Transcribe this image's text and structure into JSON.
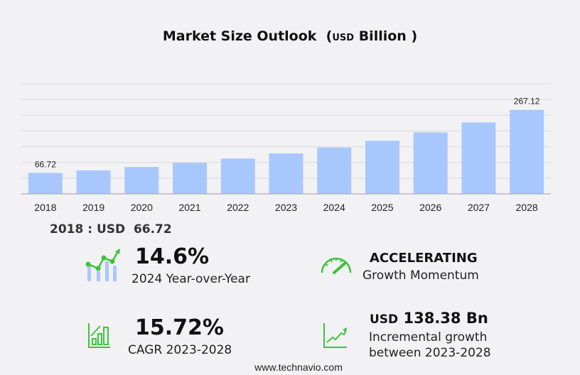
{
  "chart_data": {
    "type": "bar",
    "title": "Market Size Outlook",
    "unit_prefix": "USD",
    "unit": "Billion",
    "categories": [
      "2018",
      "2019",
      "2020",
      "2021",
      "2022",
      "2023",
      "2024",
      "2025",
      "2026",
      "2027",
      "2028"
    ],
    "values": [
      66.72,
      74.5,
      85.4,
      98.7,
      112.3,
      128.74,
      147.5,
      168.8,
      195.6,
      227.0,
      267.12
    ],
    "data_labels": {
      "0": "66.72",
      "10": "267.12"
    },
    "ylim": [
      0,
      350
    ],
    "ystep": 50,
    "grid": true,
    "bar_color": "#a8c8fd",
    "xlabel": "",
    "ylabel": ""
  },
  "title": {
    "main": "Market Size Outlook",
    "open": "(",
    "unit_prefix": "USD",
    "unit": "Billion",
    "close": ")"
  },
  "base": "2018 : USD  66.72",
  "stats": {
    "yoy_value": "14.6%",
    "yoy_label": "2024 Year-over-Year",
    "momentum_value": "ACCELERATING",
    "momentum_label": "Growth Momentum",
    "cagr_value": "15.72%",
    "cagr_label": "CAGR 2023-2028",
    "inc_prefix": "USD",
    "inc_value": "138.38 Bn",
    "inc_label1": "Incremental growth",
    "inc_label2": "between 2023-2028"
  },
  "footer": "www.technavio.com",
  "colors": {
    "green": "#3cc43c",
    "bar": "#a8c8fd"
  }
}
